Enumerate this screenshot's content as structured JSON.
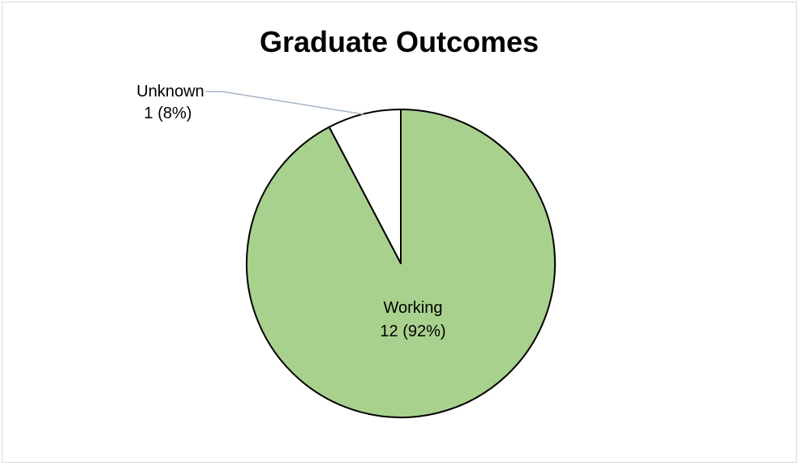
{
  "chart_data": {
    "type": "pie",
    "title": "Graduate Outcomes",
    "slices": [
      {
        "label": "Working",
        "value": 12,
        "percent_label": "12 (92%)",
        "color": "#a9d18e"
      },
      {
        "label": "Unknown",
        "value": 1,
        "percent_label": "1 (8%)",
        "color": "#ffffff"
      }
    ],
    "stroke_color": "#000000",
    "leader_line_color": "#a6b5c4",
    "legend": "none"
  }
}
